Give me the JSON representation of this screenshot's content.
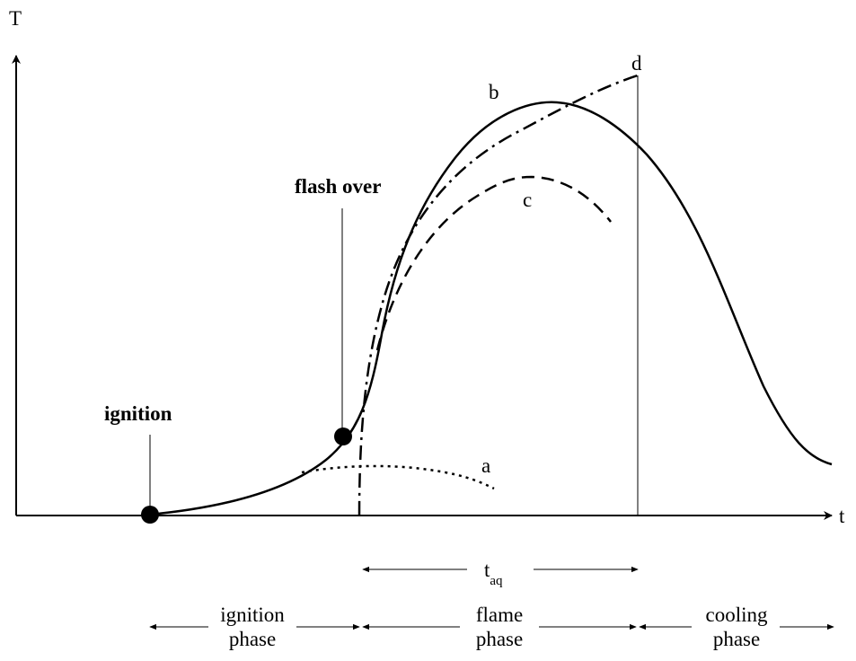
{
  "axes": {
    "y_label": "T",
    "x_label": "t"
  },
  "events": {
    "ignition": "ignition",
    "flash_over": "flash over"
  },
  "curves": {
    "a": "a",
    "b": "b",
    "c": "c",
    "d": "d"
  },
  "duration": {
    "main": "t",
    "subscript": "aq"
  },
  "phases": {
    "ignition": {
      "line1": "ignition",
      "line2": "phase"
    },
    "flame": {
      "line1": "flame",
      "line2": "phase"
    },
    "cooling": {
      "line1": "cooling",
      "line2": "phase"
    }
  }
}
